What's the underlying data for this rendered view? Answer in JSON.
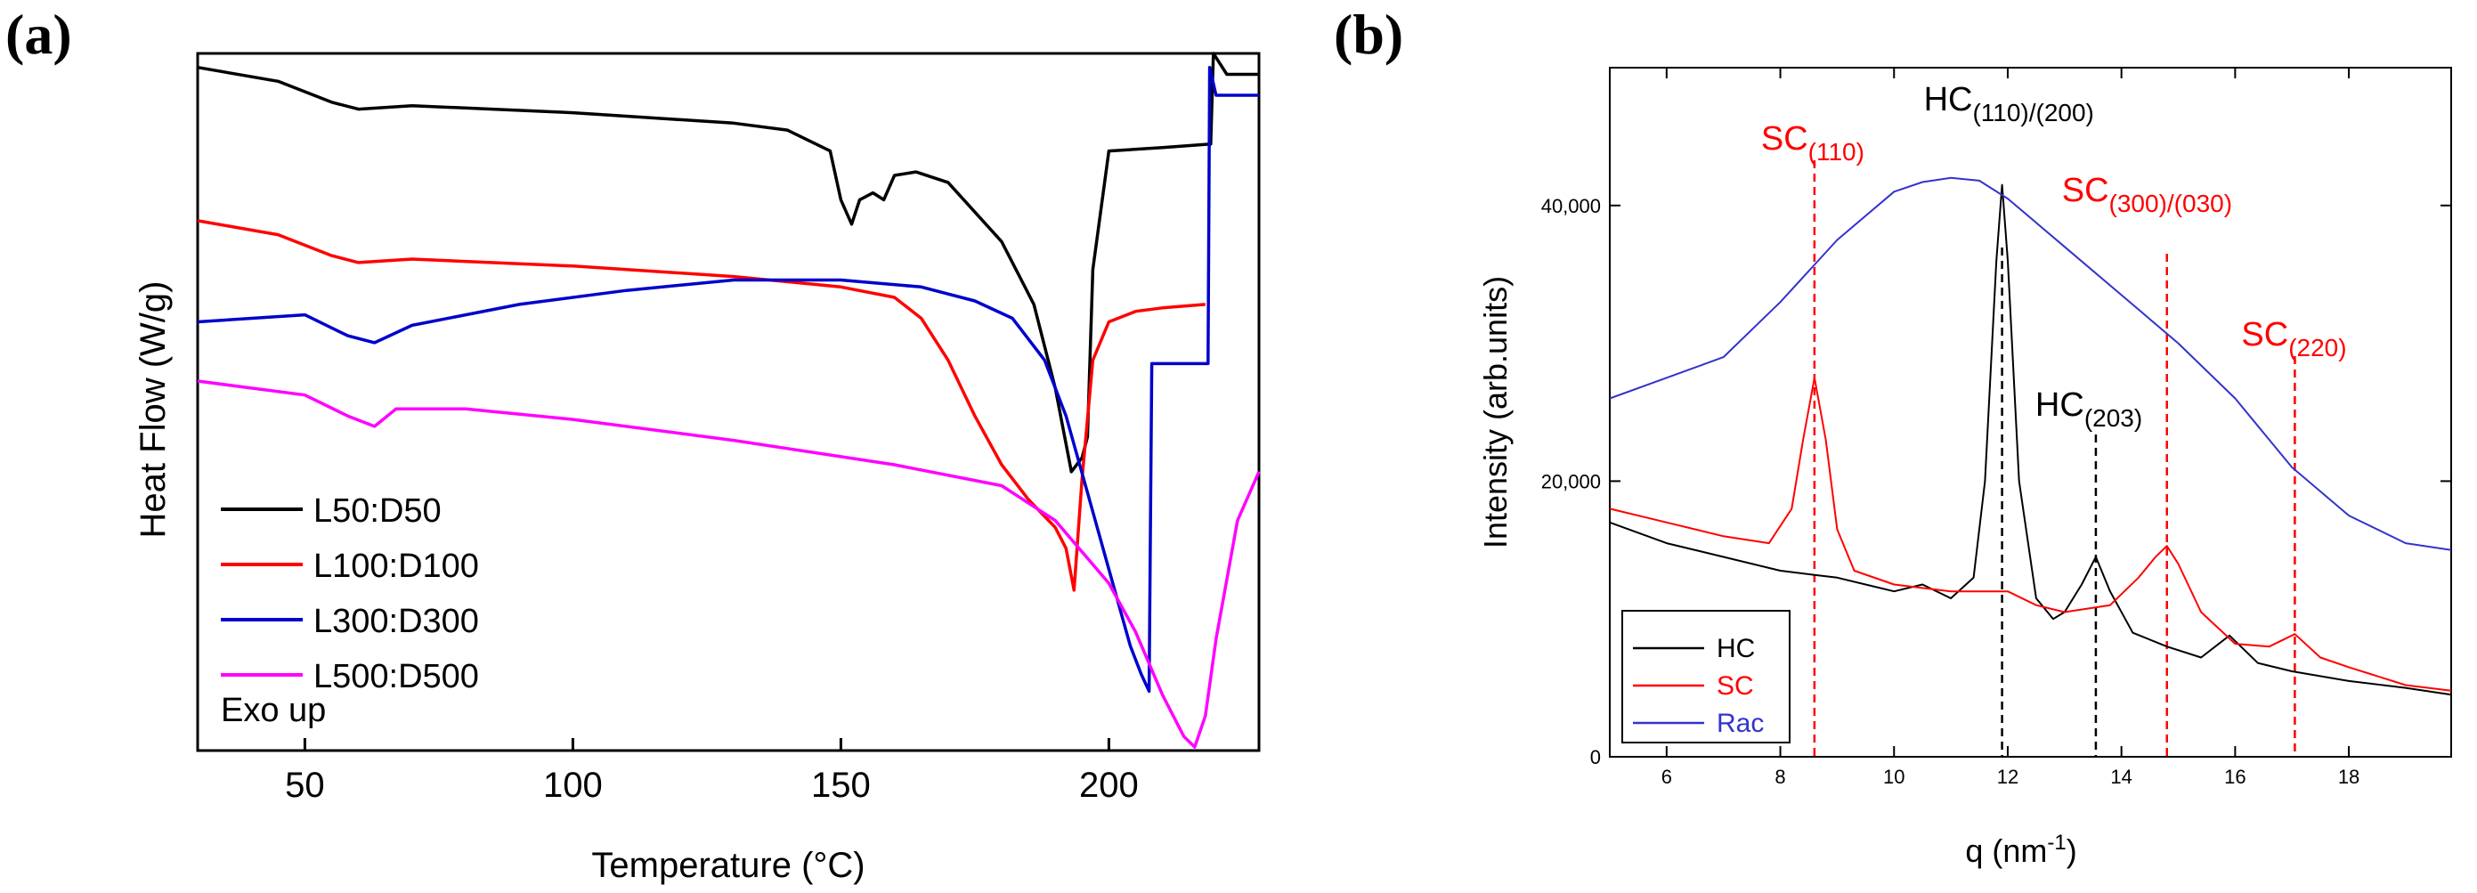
{
  "panels": {
    "a": "(a)",
    "b": "(b)"
  },
  "chart_data": [
    {
      "type": "line",
      "panel": "(a)",
      "xlabel": "Temperature (°C)",
      "ylabel": "Heat Flow (W/g)",
      "xlim": [
        30,
        228
      ],
      "ylim": [
        0,
        100
      ],
      "xticks": [
        50,
        100,
        150,
        200
      ],
      "annotation": "Exo up",
      "legend_position": "bottom-left",
      "legend": [
        "L50:D50",
        "L100:D100",
        "L300:D300",
        "L500:D500"
      ],
      "series": [
        {
          "name": "L50:D50",
          "color": "#000000",
          "x": [
            30,
            45,
            55,
            60,
            70,
            100,
            130,
            140,
            148,
            150,
            152,
            153.5,
            156,
            158,
            160,
            164,
            170,
            180,
            186,
            190,
            193,
            195,
            196,
            197,
            200,
            210,
            219,
            219.5,
            222,
            228
          ],
          "y": [
            98,
            96,
            93,
            92,
            92.5,
            91.5,
            90,
            89,
            86,
            79,
            75.5,
            79,
            80,
            79,
            82.5,
            83,
            81.5,
            73,
            64,
            52,
            40,
            42,
            45,
            69,
            86,
            86.5,
            87,
            100,
            97,
            97
          ]
        },
        {
          "name": "L100:D100",
          "color": "#ff0000",
          "x": [
            30,
            45,
            55,
            60,
            70,
            100,
            130,
            150,
            160,
            165,
            170,
            175,
            180,
            185,
            190,
            192,
            193.5,
            195,
            197,
            200,
            205,
            210,
            218
          ],
          "y": [
            76,
            74,
            71,
            70,
            70.5,
            69.5,
            68,
            66.5,
            65,
            62,
            56,
            48,
            41,
            36,
            32,
            29,
            23,
            39,
            56,
            61.5,
            63,
            63.5,
            64
          ]
        },
        {
          "name": "L300:D300",
          "color": "#0000cc",
          "x": [
            30,
            50,
            58,
            63,
            70,
            90,
            110,
            130,
            150,
            165,
            175,
            182,
            188,
            192,
            196,
            200,
            204,
            206,
            207.5,
            208,
            209,
            215,
            218.5,
            218.8,
            220,
            228
          ],
          "y": [
            61.5,
            62.5,
            59.5,
            58.5,
            61,
            64,
            66,
            67.5,
            67.5,
            66.5,
            64.5,
            62,
            56,
            48,
            37,
            26,
            15,
            11,
            8.5,
            55.5,
            55.5,
            55.5,
            55.5,
            98,
            94,
            94
          ]
        },
        {
          "name": "L500:D500",
          "color": "#ff00ff",
          "x": [
            30,
            50,
            58,
            63,
            67,
            80,
            100,
            130,
            160,
            180,
            190,
            200,
            205,
            210,
            214,
            216,
            218,
            220,
            224,
            228
          ],
          "y": [
            53,
            51,
            48,
            46.5,
            49,
            49,
            47.5,
            44.5,
            41,
            38,
            33,
            24,
            17,
            8,
            2,
            0.5,
            5,
            16,
            33,
            40
          ]
        }
      ]
    },
    {
      "type": "line",
      "panel": "(b)",
      "xlabel": "q (nm",
      "xlabel_sup": "-1",
      "xlabel_end": ")",
      "ylabel": "Intensity (arb.units)",
      "xlim": [
        5,
        19.8
      ],
      "ylim": [
        0,
        50000
      ],
      "xticks": [
        "6",
        "8",
        "10",
        "12",
        "14",
        "16",
        "18"
      ],
      "yticks": [
        "0",
        "20,000",
        "40,000"
      ],
      "ytick_values": [
        0,
        20000,
        40000
      ],
      "legend_position": "bottom-left",
      "legend": [
        "HC",
        "SC",
        "Rac"
      ],
      "peaks": [
        {
          "label": "SC",
          "sub": "(110)",
          "q": 8.6,
          "color": "#ff0000"
        },
        {
          "label": "HC",
          "sub": "(110)/(200)",
          "q": 11.9,
          "color": "#000000"
        },
        {
          "label": "HC",
          "sub": "(203)",
          "q": 13.55,
          "color": "#000000"
        },
        {
          "label": "SC",
          "sub": "(300)/(030)",
          "q": 14.8,
          "color": "#ff0000"
        },
        {
          "label": "SC",
          "sub": "(220)",
          "q": 17.05,
          "color": "#ff0000"
        }
      ],
      "series": [
        {
          "name": "HC",
          "color": "#000000",
          "x": [
            5,
            6,
            7,
            8,
            8.6,
            9,
            9.5,
            10,
            10.5,
            11,
            11.4,
            11.6,
            11.8,
            11.9,
            12.0,
            12.2,
            12.5,
            12.8,
            13.0,
            13.3,
            13.55,
            13.8,
            14.2,
            14.8,
            15.4,
            15.9,
            16.4,
            17,
            18,
            19,
            19.8
          ],
          "y": [
            17000,
            15500,
            14500,
            13500,
            13200,
            13000,
            12500,
            12000,
            12500,
            11500,
            13000,
            20000,
            36000,
            41500,
            36000,
            20000,
            11500,
            10000,
            10500,
            12500,
            14500,
            12000,
            9000,
            8000,
            7200,
            8800,
            6800,
            6200,
            5500,
            5000,
            4500
          ]
        },
        {
          "name": "SC",
          "color": "#ff0000",
          "x": [
            5,
            6,
            7,
            7.8,
            8.2,
            8.4,
            8.6,
            8.8,
            9.0,
            9.3,
            10,
            11,
            12,
            12.5,
            13,
            13.8,
            14.3,
            14.6,
            14.8,
            15.0,
            15.4,
            16,
            16.6,
            17.05,
            17.5,
            18,
            19,
            19.8
          ],
          "y": [
            18000,
            17000,
            16000,
            15500,
            18000,
            23000,
            27500,
            23000,
            16500,
            13500,
            12500,
            12000,
            12000,
            11000,
            10500,
            11000,
            13000,
            14500,
            15300,
            14000,
            10500,
            8200,
            8000,
            8900,
            7200,
            6500,
            5200,
            4800
          ]
        },
        {
          "name": "Rac",
          "color": "#3333cc",
          "x": [
            5,
            6,
            7,
            8,
            9,
            10,
            10.5,
            11,
            11.5,
            12,
            13,
            14,
            15,
            16,
            17,
            18,
            19,
            19.8
          ],
          "y": [
            26000,
            27500,
            29000,
            33000,
            37500,
            41000,
            41700,
            42000,
            41800,
            40500,
            37000,
            33500,
            30000,
            26000,
            21000,
            17500,
            15500,
            15000
          ]
        }
      ]
    }
  ]
}
